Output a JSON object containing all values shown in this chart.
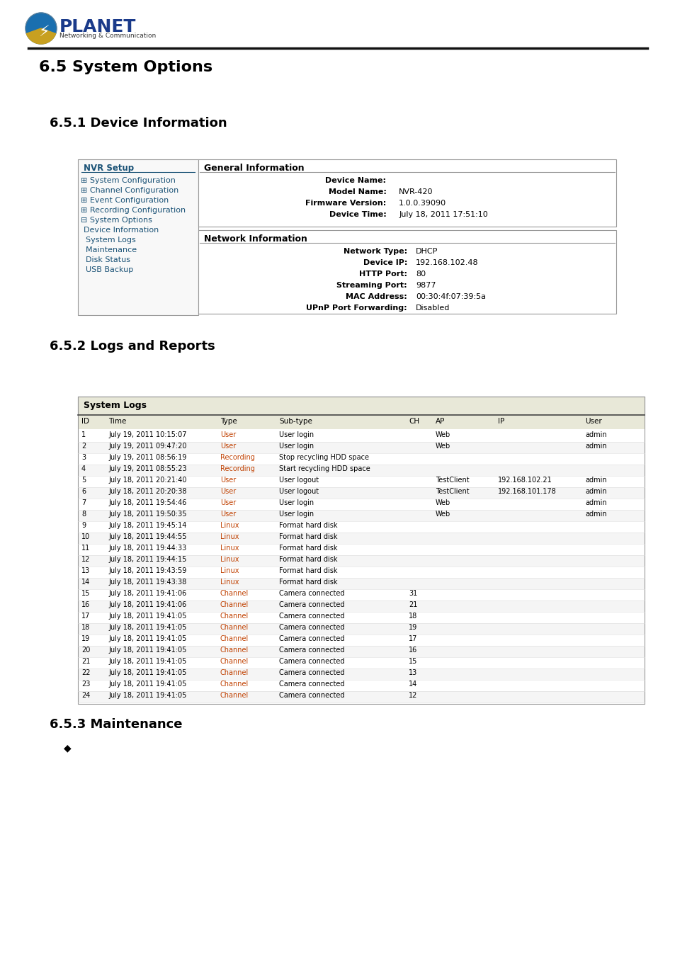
{
  "bg_color": "#ffffff",
  "title_65": "6.5 System Options",
  "title_651": "6.5.1 Device Information",
  "title_652": "6.5.2 Logs and Reports",
  "title_653": "6.5.3 Maintenance",
  "nvr_setup_label": "NVR Setup",
  "nvr_menu_items": [
    {
      "text": "± System Configuration",
      "indent": 0,
      "link": true
    },
    {
      "text": "± Channel Configuration",
      "indent": 0,
      "link": true
    },
    {
      "text": "± Event Configuration",
      "indent": 0,
      "link": true
    },
    {
      "text": "± Recording Configuration",
      "indent": 0,
      "link": true
    },
    {
      "text": "≡ System Options",
      "indent": 0,
      "link": true
    },
    {
      "text": "Device Information",
      "indent": 1,
      "link": true,
      "underline": true
    },
    {
      "text": "System Logs",
      "indent": 1,
      "link": true
    },
    {
      "text": "Maintenance",
      "indent": 1,
      "link": true
    },
    {
      "text": "Disk Status",
      "indent": 1,
      "link": true
    },
    {
      "text": "USB Backup",
      "indent": 1,
      "link": true
    }
  ],
  "general_info_title": "General Information",
  "general_info": [
    {
      "label": "Device Name:",
      "value": ""
    },
    {
      "label": "Model Name:",
      "value": "NVR-420"
    },
    {
      "label": "Firmware Version:",
      "value": "1.0.0.39090"
    },
    {
      "label": "Device Time:",
      "value": "July 18, 2011 17:51:10"
    }
  ],
  "network_info_title": "Network Information",
  "network_info": [
    {
      "label": "Network Type:",
      "value": "DHCP"
    },
    {
      "label": "Device IP:",
      "value": "192.168.102.48"
    },
    {
      "label": "HTTP Port:",
      "value": "80"
    },
    {
      "label": "Streaming Port:",
      "value": "9877"
    },
    {
      "label": "MAC Address:",
      "value": "00:30:4f:07:39:5a"
    },
    {
      "label": "UPnP Port Forwarding:",
      "value": "Disabled"
    }
  ],
  "log_headers": [
    "ID",
    "Time",
    "Type",
    "Sub-type",
    "CH",
    "AP",
    "IP",
    "User"
  ],
  "log_rows": [
    [
      "1",
      "July 19, 2011 10:15:07",
      "User",
      "User login",
      "",
      "Web",
      "",
      "admin"
    ],
    [
      "2",
      "July 19, 2011 09:47:20",
      "User",
      "User login",
      "",
      "Web",
      "",
      "admin"
    ],
    [
      "3",
      "July 19, 2011 08:56:19",
      "Recording",
      "Stop recycling HDD space",
      "",
      "",
      "",
      ""
    ],
    [
      "4",
      "July 19, 2011 08:55:23",
      "Recording",
      "Start recycling HDD space",
      "",
      "",
      "",
      ""
    ],
    [
      "5",
      "July 18, 2011 20:21:40",
      "User",
      "User logout",
      "",
      "TestClient",
      "192.168.102.21",
      "admin"
    ],
    [
      "6",
      "July 18, 2011 20:20:38",
      "User",
      "User logout",
      "",
      "TestClient",
      "192.168.101.178",
      "admin"
    ],
    [
      "7",
      "July 18, 2011 19:54:46",
      "User",
      "User login",
      "",
      "Web",
      "",
      "admin"
    ],
    [
      "8",
      "July 18, 2011 19:50:35",
      "User",
      "User login",
      "",
      "Web",
      "",
      "admin"
    ],
    [
      "9",
      "July 18, 2011 19:45:14",
      "Linux",
      "Format hard disk",
      "",
      "",
      "",
      ""
    ],
    [
      "10",
      "July 18, 2011 19:44:55",
      "Linux",
      "Format hard disk",
      "",
      "",
      "",
      ""
    ],
    [
      "11",
      "July 18, 2011 19:44:33",
      "Linux",
      "Format hard disk",
      "",
      "",
      "",
      ""
    ],
    [
      "12",
      "July 18, 2011 19:44:15",
      "Linux",
      "Format hard disk",
      "",
      "",
      "",
      ""
    ],
    [
      "13",
      "July 18, 2011 19:43:59",
      "Linux",
      "Format hard disk",
      "",
      "",
      "",
      ""
    ],
    [
      "14",
      "July 18, 2011 19:43:38",
      "Linux",
      "Format hard disk",
      "",
      "",
      "",
      ""
    ],
    [
      "15",
      "July 18, 2011 19:41:06",
      "Channel",
      "Camera connected",
      "31",
      "",
      "",
      ""
    ],
    [
      "16",
      "July 18, 2011 19:41:06",
      "Channel",
      "Camera connected",
      "21",
      "",
      "",
      ""
    ],
    [
      "17",
      "July 18, 2011 19:41:05",
      "Channel",
      "Camera connected",
      "18",
      "",
      "",
      ""
    ],
    [
      "18",
      "July 18, 2011 19:41:05",
      "Channel",
      "Camera connected",
      "19",
      "",
      "",
      ""
    ],
    [
      "19",
      "July 18, 2011 19:41:05",
      "Channel",
      "Camera connected",
      "17",
      "",
      "",
      ""
    ],
    [
      "20",
      "July 18, 2011 19:41:05",
      "Channel",
      "Camera connected",
      "16",
      "",
      "",
      ""
    ],
    [
      "21",
      "July 18, 2011 19:41:05",
      "Channel",
      "Camera connected",
      "15",
      "",
      "",
      ""
    ],
    [
      "22",
      "July 18, 2011 19:41:05",
      "Channel",
      "Camera connected",
      "13",
      "",
      "",
      ""
    ],
    [
      "23",
      "July 18, 2011 19:41:05",
      "Channel",
      "Camera connected",
      "14",
      "",
      "",
      ""
    ],
    [
      "24",
      "July 18, 2011 19:41:05",
      "Channel",
      "Camera connected",
      "12",
      "",
      "",
      ""
    ]
  ],
  "link_color": "#1a5276",
  "header_bg": "#e8e8d8",
  "row_bg_even": "#ffffff",
  "row_bg_odd": "#f5f5f5",
  "border_color": "#999999",
  "dark_border": "#555555",
  "section_title_color": "#000000",
  "bullet": "◆"
}
